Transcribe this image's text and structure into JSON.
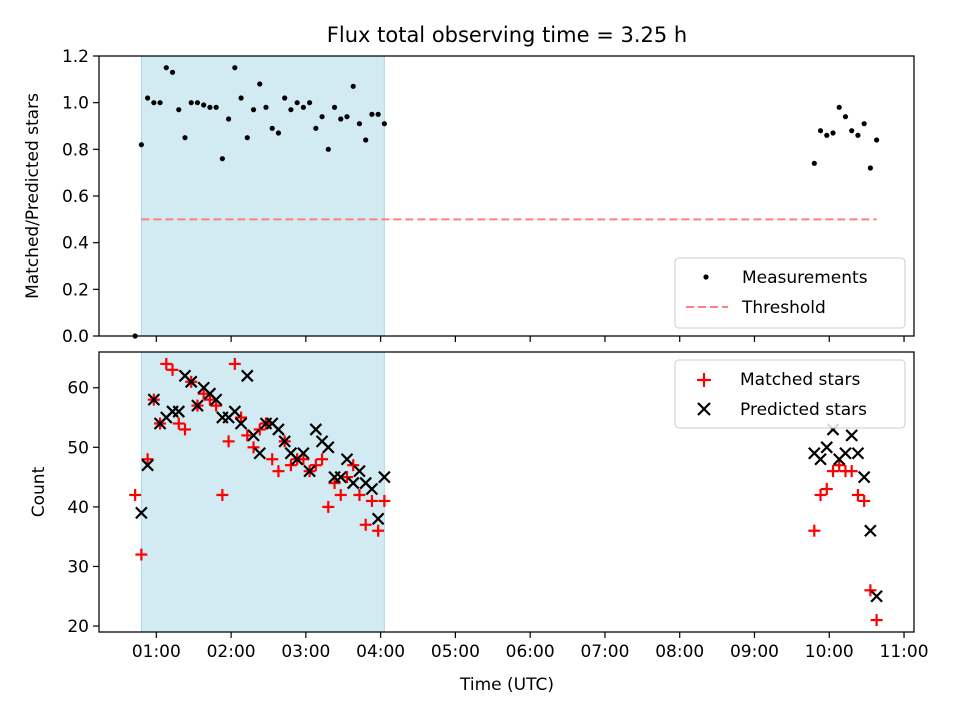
{
  "figure": {
    "title": "Flux total observing time = 3.25 h",
    "xlabel": "Time (UTC)"
  },
  "chart_data": [
    {
      "type": "scatter",
      "panel": "top",
      "title": "Flux total observing time = 3.25 h",
      "ylabel": "Matched/Predicted stars",
      "xlim": [
        "00:14",
        "11:08"
      ],
      "ylim": [
        0,
        1.2
      ],
      "y_ticks": [
        "0.0",
        "0.2",
        "0.4",
        "0.6",
        "0.8",
        "1.0",
        "1.2"
      ],
      "shaded_span": {
        "from": "00:48",
        "to": "04:03",
        "color": "#add8e6"
      },
      "legend_position": "lower right",
      "series": [
        {
          "name": "Measurements",
          "marker": "dot",
          "color": "#000000",
          "x": [
            "00:43",
            "00:48",
            "00:53",
            "00:58",
            "01:03",
            "01:08",
            "01:13",
            "01:18",
            "01:23",
            "01:28",
            "01:33",
            "01:38",
            "01:43",
            "01:48",
            "01:53",
            "01:58",
            "02:03",
            "02:08",
            "02:13",
            "02:18",
            "02:23",
            "02:28",
            "02:33",
            "02:38",
            "02:43",
            "02:48",
            "02:53",
            "02:58",
            "03:03",
            "03:08",
            "03:13",
            "03:18",
            "03:23",
            "03:28",
            "03:33",
            "03:38",
            "03:43",
            "03:48",
            "03:53",
            "03:58",
            "04:03",
            "09:48",
            "09:53",
            "09:58",
            "10:03",
            "10:08",
            "10:13",
            "10:18",
            "10:23",
            "10:28",
            "10:33",
            "10:38"
          ],
          "y": [
            0.0,
            0.82,
            1.02,
            1.0,
            1.0,
            1.15,
            1.13,
            0.97,
            0.85,
            1.0,
            1.0,
            0.99,
            0.98,
            0.98,
            0.76,
            0.93,
            1.15,
            1.02,
            0.85,
            0.97,
            1.08,
            0.98,
            0.89,
            0.87,
            1.02,
            0.97,
            1.0,
            0.98,
            1.0,
            0.89,
            0.94,
            0.8,
            0.98,
            0.93,
            0.94,
            1.07,
            0.91,
            0.84,
            0.95,
            0.95,
            0.91,
            0.74,
            0.88,
            0.86,
            0.87,
            0.98,
            0.94,
            0.88,
            0.86,
            0.91,
            0.72,
            0.84
          ]
        },
        {
          "name": "Threshold",
          "marker": "dashed-line",
          "color": "#ff7f7f",
          "x": [
            "00:48",
            "10:38"
          ],
          "y": [
            0.5,
            0.5
          ]
        }
      ]
    },
    {
      "type": "scatter",
      "panel": "bottom",
      "xlabel": "Time (UTC)",
      "ylabel": "Count",
      "xlim": [
        "00:14",
        "11:08"
      ],
      "ylim": [
        19,
        66
      ],
      "y_ticks": [
        "20",
        "30",
        "40",
        "50",
        "60"
      ],
      "x_ticks": [
        "01:00",
        "02:00",
        "03:00",
        "04:00",
        "05:00",
        "06:00",
        "07:00",
        "08:00",
        "09:00",
        "10:00",
        "11:00"
      ],
      "shaded_span": {
        "from": "00:48",
        "to": "04:03",
        "color": "#add8e6"
      },
      "legend_position": "upper right",
      "series": [
        {
          "name": "Matched stars",
          "marker": "plus",
          "color": "#ff0000",
          "x": [
            "00:43",
            "00:48",
            "00:53",
            "00:58",
            "01:03",
            "01:08",
            "01:13",
            "01:18",
            "01:23",
            "01:28",
            "01:33",
            "01:38",
            "01:43",
            "01:48",
            "01:53",
            "01:58",
            "02:03",
            "02:08",
            "02:13",
            "02:18",
            "02:23",
            "02:28",
            "02:33",
            "02:38",
            "02:43",
            "02:48",
            "02:53",
            "02:58",
            "03:03",
            "03:08",
            "03:13",
            "03:18",
            "03:23",
            "03:28",
            "03:33",
            "03:38",
            "03:43",
            "03:48",
            "03:53",
            "03:58",
            "04:03",
            "09:48",
            "09:53",
            "09:58",
            "10:03",
            "10:08",
            "10:13",
            "10:18",
            "10:23",
            "10:28",
            "10:33",
            "10:38"
          ],
          "y": [
            42,
            32,
            48,
            58,
            54,
            64,
            63,
            54,
            53,
            61,
            57,
            59,
            58,
            57,
            42,
            51,
            64,
            55,
            52,
            50,
            53,
            54,
            48,
            46,
            51,
            47,
            48,
            48,
            46,
            47,
            48,
            40,
            44,
            42,
            45,
            47,
            42,
            37,
            41,
            36,
            41,
            36,
            42,
            43,
            46,
            47,
            46,
            46,
            42,
            41,
            26,
            21
          ]
        },
        {
          "name": "Predicted stars",
          "marker": "x",
          "color": "#000000",
          "x": [
            "00:43",
            "00:48",
            "00:53",
            "00:58",
            "01:03",
            "01:08",
            "01:13",
            "01:18",
            "01:23",
            "01:28",
            "01:33",
            "01:38",
            "01:43",
            "01:48",
            "01:53",
            "01:58",
            "02:03",
            "02:08",
            "02:13",
            "02:18",
            "02:23",
            "02:28",
            "02:33",
            "02:38",
            "02:43",
            "02:48",
            "02:53",
            "02:58",
            "03:03",
            "03:08",
            "03:13",
            "03:18",
            "03:23",
            "03:28",
            "03:33",
            "03:38",
            "03:43",
            "03:48",
            "03:53",
            "03:58",
            "04:03",
            "09:48",
            "09:53",
            "09:58",
            "10:03",
            "10:08",
            "10:13",
            "10:18",
            "10:23",
            "10:28",
            "10:33",
            "10:38"
          ],
          "y": [
            null,
            39,
            47,
            58,
            54,
            55,
            56,
            56,
            62,
            61,
            57,
            60,
            59,
            58,
            55,
            55,
            56,
            54,
            62,
            52,
            49,
            54,
            54,
            53,
            51,
            49,
            48,
            49,
            46,
            53,
            51,
            50,
            45,
            45,
            48,
            44,
            46,
            44,
            43,
            38,
            45,
            49,
            48,
            50,
            53,
            48,
            49,
            52,
            49,
            45,
            36,
            25
          ]
        }
      ]
    }
  ]
}
